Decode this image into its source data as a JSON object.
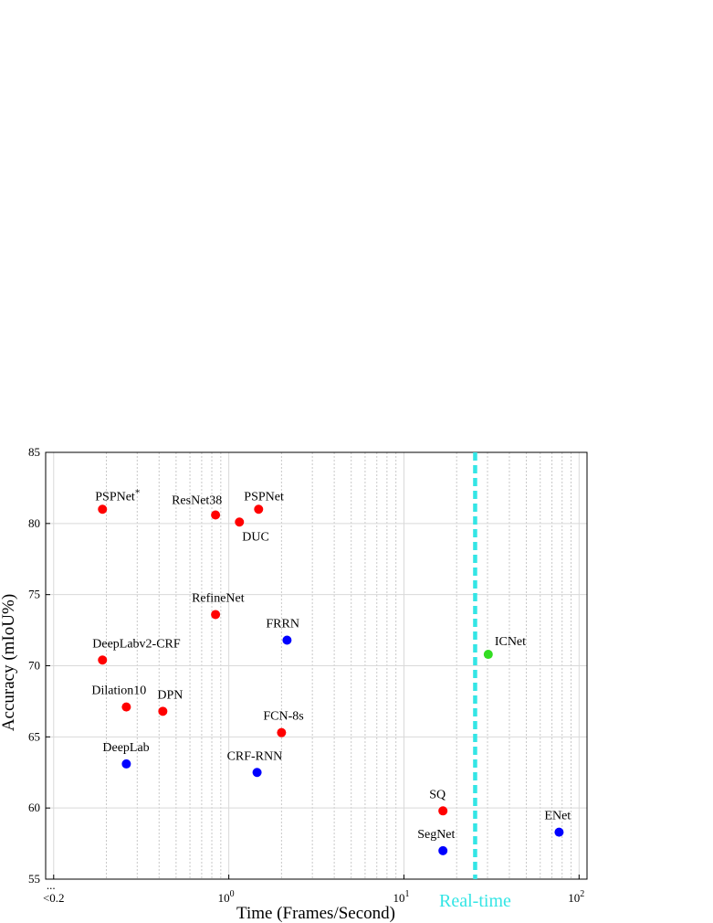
{
  "chart_data": {
    "type": "scatter",
    "title": "",
    "xlabel": "Time (Frames/Second)",
    "ylabel": "Accuracy (mIoU%)",
    "xscale": "log",
    "xlim": [
      0.09,
      111
    ],
    "ylim": [
      55,
      85
    ],
    "grid": true,
    "y_ticks": [
      55,
      60,
      65,
      70,
      75,
      80,
      85
    ],
    "x_tick_labels": [
      {
        "value": 0.1,
        "label": "<0.2",
        "prefix": "...",
        "sup": ""
      },
      {
        "value": 1,
        "label": "10",
        "prefix": "",
        "sup": "0"
      },
      {
        "value": 10,
        "label": "10",
        "prefix": "",
        "sup": "1"
      },
      {
        "value": 100,
        "label": "10",
        "prefix": "",
        "sup": "2"
      }
    ],
    "colors": {
      "red": "#ff0000",
      "blue": "#0000ff",
      "green": "#33dd22",
      "realtime": "#33e5e5"
    },
    "realtime_line": {
      "x": 25.5,
      "label": "Real-time"
    },
    "points": [
      {
        "label": "PSPNet",
        "sup": "*",
        "x": 0.19,
        "y": 81.0,
        "color": "red",
        "label_dx": -8,
        "label_dy": -10
      },
      {
        "label": "ResNet38",
        "sup": "",
        "x": 0.84,
        "y": 80.6,
        "color": "red",
        "label_dx": -48,
        "label_dy": -12
      },
      {
        "label": "DUC",
        "sup": "",
        "x": 1.15,
        "y": 80.1,
        "color": "red",
        "label_dx": 3,
        "label_dy": 20
      },
      {
        "label": "PSPNet",
        "sup": "",
        "x": 1.48,
        "y": 81.0,
        "color": "red",
        "label_dx": -16,
        "label_dy": -10
      },
      {
        "label": "RefineNet",
        "sup": "",
        "x": 0.84,
        "y": 73.6,
        "color": "red",
        "label_dx": -26,
        "label_dy": -14
      },
      {
        "label": "FRRN",
        "sup": "",
        "x": 2.15,
        "y": 71.8,
        "color": "blue",
        "label_dx": -23,
        "label_dy": -14
      },
      {
        "label": "DeepLabv2-CRF",
        "sup": "",
        "x": 0.19,
        "y": 70.4,
        "color": "red",
        "label_dx": -11,
        "label_dy": -14
      },
      {
        "label": "ICNet",
        "sup": "",
        "x": 30.3,
        "y": 70.8,
        "color": "green",
        "label_dx": 7,
        "label_dy": -10
      },
      {
        "label": "Dilation10",
        "sup": "",
        "x": 0.26,
        "y": 67.1,
        "color": "red",
        "label_dx": -38,
        "label_dy": -14
      },
      {
        "label": "DPN",
        "sup": "",
        "x": 0.42,
        "y": 66.8,
        "color": "red",
        "label_dx": -6,
        "label_dy": -14
      },
      {
        "label": "FCN-8s",
        "sup": "",
        "x": 2.0,
        "y": 65.3,
        "color": "red",
        "label_dx": -20,
        "label_dy": -14
      },
      {
        "label": "DeepLab",
        "sup": "",
        "x": 0.26,
        "y": 63.1,
        "color": "blue",
        "label_dx": -26,
        "label_dy": -14
      },
      {
        "label": "CRF-RNN",
        "sup": "",
        "x": 1.45,
        "y": 62.5,
        "color": "blue",
        "label_dx": -33,
        "label_dy": -14
      },
      {
        "label": "SQ",
        "sup": "",
        "x": 16.7,
        "y": 59.8,
        "color": "red",
        "label_dx": -15,
        "label_dy": -14
      },
      {
        "label": "SegNet",
        "sup": "",
        "x": 16.7,
        "y": 57.0,
        "color": "blue",
        "label_dx": -28,
        "label_dy": -14
      },
      {
        "label": "ENet",
        "sup": "",
        "x": 76.9,
        "y": 58.3,
        "color": "blue",
        "label_dx": -16,
        "label_dy": -14
      }
    ]
  }
}
